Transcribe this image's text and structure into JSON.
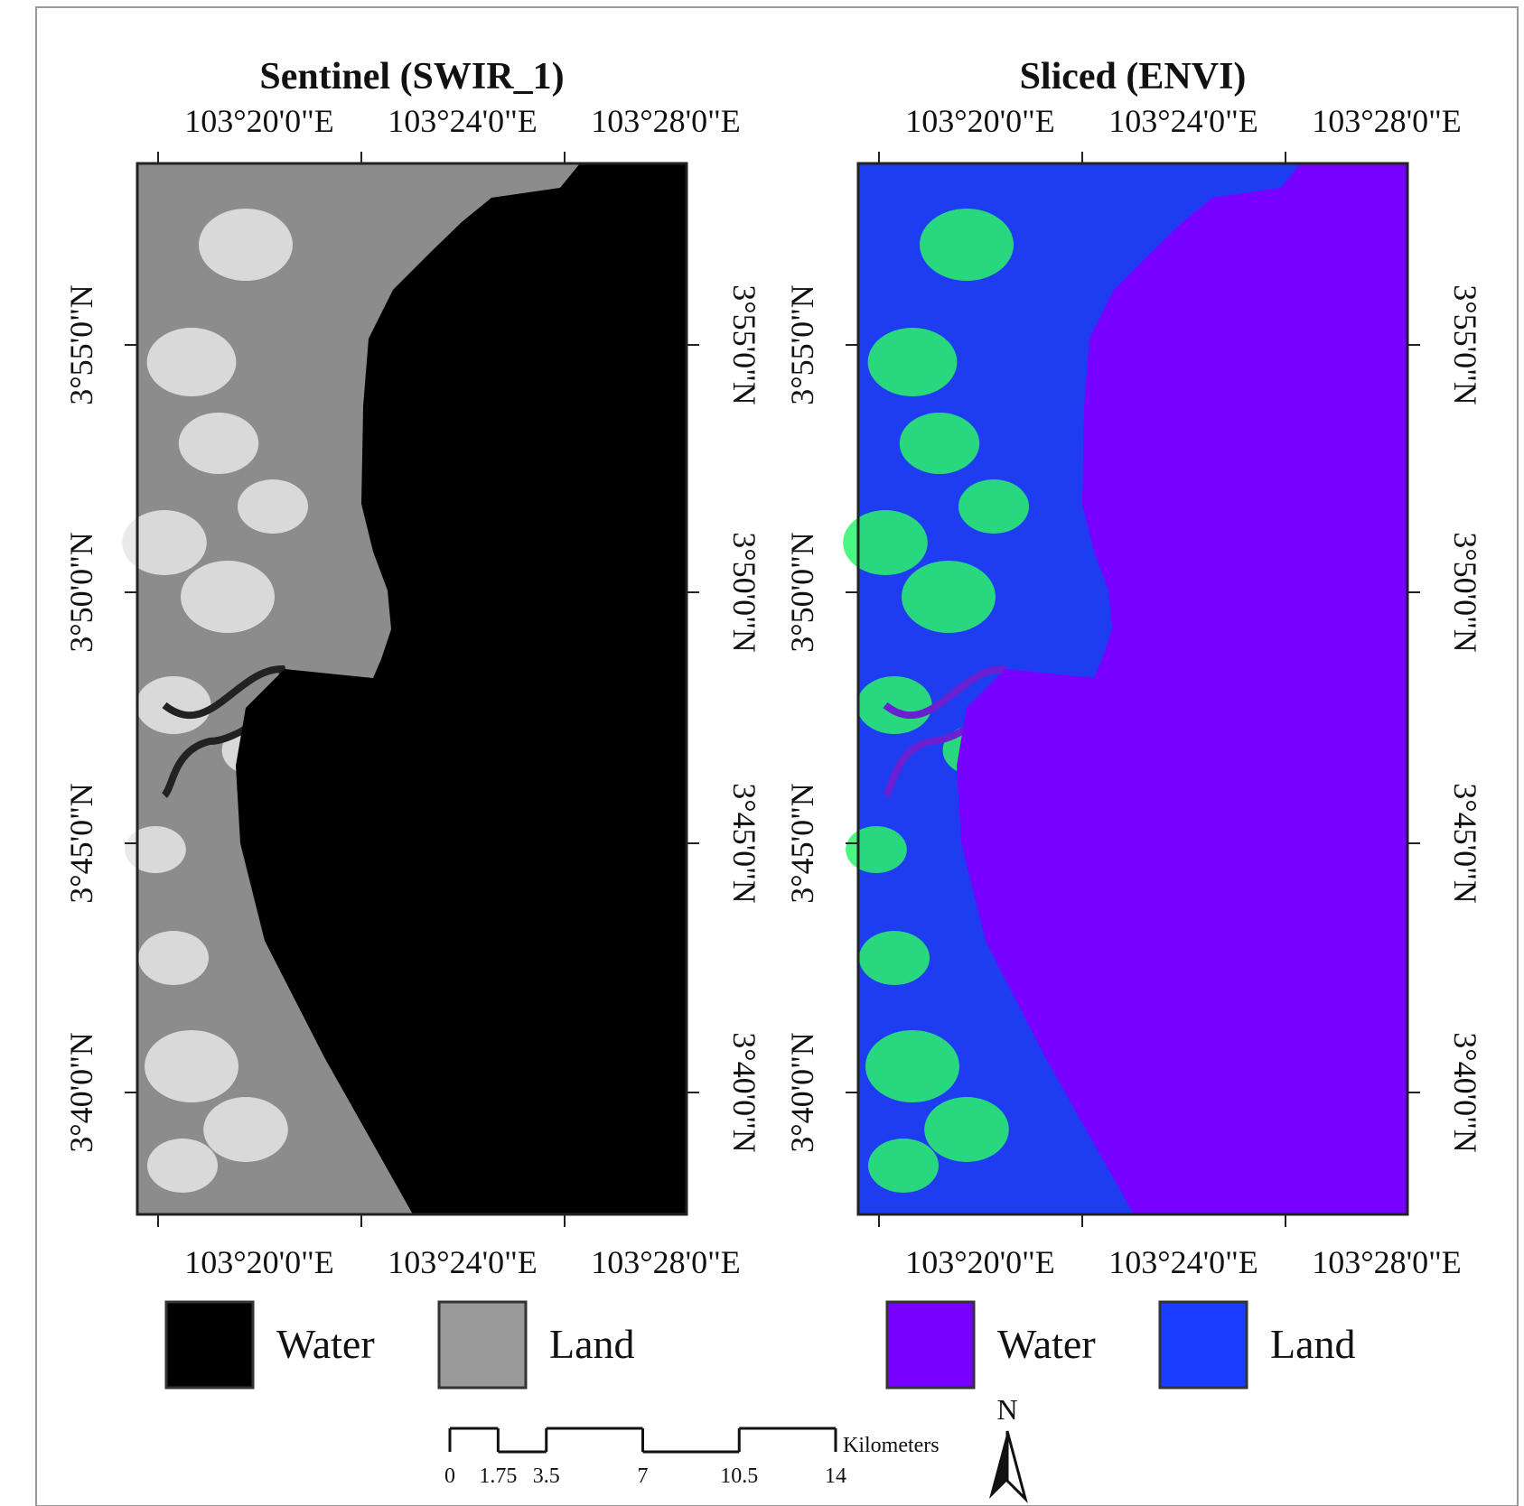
{
  "panels": [
    {
      "title": "Sentinel (SWIR_1)",
      "top_lon_labels": [
        "103°20'0\"E",
        "103°24'0\"E",
        "103°28'0\"E"
      ],
      "bottom_lon_labels": [
        "103°20'0\"E",
        "103°24'0\"E",
        "103°28'0\"E"
      ],
      "left_lat_labels": [
        "3°55'0\"N",
        "3°50'0\"N",
        "3°45'0\"N",
        "3°40'0\"N"
      ],
      "right_lat_labels": [
        "3°55'0\"N",
        "3°50'0\"N",
        "3°45'0\"N",
        "3°40'0\"N"
      ],
      "legend": [
        "Water",
        "Land"
      ]
    },
    {
      "title": "Sliced (ENVI)",
      "top_lon_labels": [
        "103°20'0\"E",
        "103°24'0\"E",
        "103°28'0\"E"
      ],
      "bottom_lon_labels": [
        "103°20'0\"E",
        "103°24'0\"E",
        "103°28'0\"E"
      ],
      "left_lat_labels": [
        "3°55'0\"N",
        "3°50'0\"N",
        "3°45'0\"N",
        "3°40'0\"N"
      ],
      "right_lat_labels": [
        "3°55'0\"N",
        "3°50'0\"N",
        "3°45'0\"N",
        "3°40'0\"N"
      ],
      "legend": [
        "Water",
        "Land"
      ]
    }
  ],
  "scale_bar": {
    "ticks": [
      0,
      1.75,
      3.5,
      7,
      10.5,
      14
    ],
    "unit": "Kilometers"
  },
  "north_arrow": "N"
}
